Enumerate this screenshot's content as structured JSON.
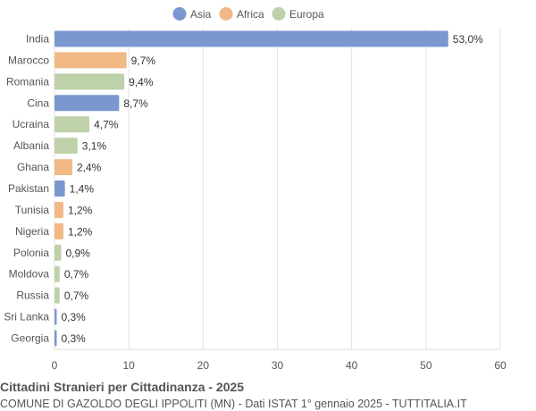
{
  "chart_data": {
    "type": "bar",
    "orientation": "horizontal",
    "title": "Cittadini Stranieri per Cittadinanza - 2025",
    "subtitle": "COMUNE DI GAZOLDO DEGLI IPPOLITI (MN) - Dati ISTAT 1° gennaio 2025 - TUTTITALIA.IT",
    "legend": {
      "position": "top",
      "items": [
        {
          "name": "Asia",
          "color": "#7b97cf"
        },
        {
          "name": "Africa",
          "color": "#f0b985"
        },
        {
          "name": "Europa",
          "color": "#bfd1a8"
        }
      ]
    },
    "categories": [
      "India",
      "Marocco",
      "Romania",
      "Cina",
      "Ucraina",
      "Albania",
      "Ghana",
      "Pakistan",
      "Tunisia",
      "Nigeria",
      "Polonia",
      "Moldova",
      "Russia",
      "Sri Lanka",
      "Georgia"
    ],
    "values": [
      53.0,
      9.7,
      9.4,
      8.7,
      4.7,
      3.1,
      2.4,
      1.4,
      1.2,
      1.2,
      0.9,
      0.7,
      0.7,
      0.3,
      0.3
    ],
    "labels": [
      "53,0%",
      "9,7%",
      "9,4%",
      "8,7%",
      "4,7%",
      "3,1%",
      "2,4%",
      "1,4%",
      "1,2%",
      "1,2%",
      "0,9%",
      "0,7%",
      "0,7%",
      "0,3%",
      "0,3%"
    ],
    "groups": [
      "Asia",
      "Africa",
      "Europa",
      "Asia",
      "Europa",
      "Europa",
      "Africa",
      "Asia",
      "Africa",
      "Africa",
      "Europa",
      "Europa",
      "Europa",
      "Asia",
      "Asia"
    ],
    "xlim": [
      0,
      60
    ],
    "xticks": [
      0,
      10,
      20,
      30,
      40,
      50,
      60
    ],
    "grid": true
  }
}
